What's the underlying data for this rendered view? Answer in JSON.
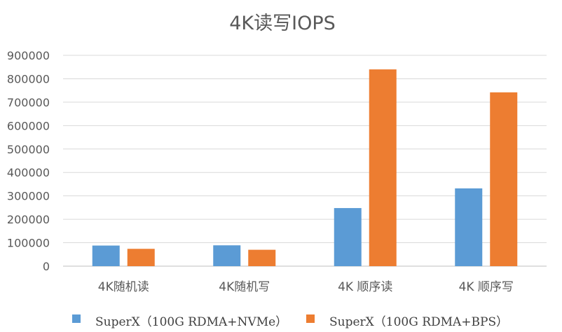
{
  "chart_data": {
    "type": "bar",
    "title": "4K读写IOPS",
    "xlabel": "",
    "ylabel": "",
    "categories": [
      "4K随机读",
      "4K随机写",
      "4K 顺序读",
      "4K 顺序写"
    ],
    "series": [
      {
        "name": "SuperX（100G RDMA+NVMe）",
        "color": "#5b9bd5",
        "values": [
          88000,
          89000,
          248000,
          332000
        ]
      },
      {
        "name": "SuperX（100G RDMA+BPS）",
        "color": "#ed7d31",
        "values": [
          74000,
          70000,
          840000,
          742000
        ]
      }
    ],
    "ylim": [
      0,
      900000
    ],
    "yticks": [
      "0",
      "100000",
      "200000",
      "300000",
      "400000",
      "500000",
      "600000",
      "700000",
      "800000",
      "900000"
    ],
    "grid": true,
    "legend_position": "bottom"
  }
}
